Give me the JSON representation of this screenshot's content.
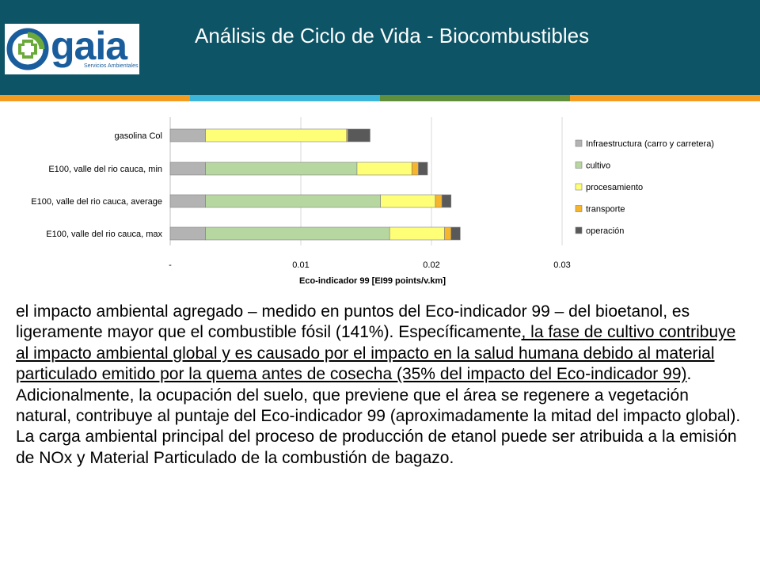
{
  "header": {
    "logo_name": "gaia",
    "logo_subtitle": "Servicios Ambientales",
    "title": "Análisis de Ciclo de Vida - Biocombustibles",
    "stripe_colors": [
      "#f39c1f",
      "#3bb5d8",
      "#5f8f3a",
      "#f39c1f"
    ]
  },
  "chart_data": {
    "type": "bar",
    "orientation": "horizontal",
    "stacked": true,
    "categories": [
      "gasolina Col",
      "E100, valle del rio cauca, min",
      "E100, valle del rio cauca, average",
      "E100, valle del rio cauca, max"
    ],
    "series": [
      {
        "name": "Infraestructura (carro y carretera)",
        "color": "#b3b3b3",
        "values": [
          0.0027,
          0.0027,
          0.0027,
          0.0027
        ]
      },
      {
        "name": "cultivo",
        "color": "#b7d7a0",
        "values": [
          0,
          0.0116,
          0.0134,
          0.0141
        ]
      },
      {
        "name": "procesamiento",
        "color": "#ffff77",
        "values": [
          0.0108,
          0.0042,
          0.0042,
          0.0042
        ]
      },
      {
        "name": "transporte",
        "color": "#f6b52b",
        "values": [
          0.0001,
          0.0005,
          0.0005,
          0.0005
        ]
      },
      {
        "name": "operación",
        "color": "#595959",
        "values": [
          0.0017,
          0.0007,
          0.0007,
          0.0007
        ]
      }
    ],
    "xlabel": "Eco-indicador 99 [EI99 points/v.km]",
    "ylabel": "",
    "xlim": [
      0,
      0.03
    ],
    "ticks": [
      0,
      0.01,
      0.02,
      0.03
    ],
    "tick_labels": [
      "-",
      "0.01",
      "0.02",
      "0.03"
    ],
    "grid": true,
    "legend_position": "right"
  },
  "body": {
    "p1": "el impacto ambiental agregado – medido en puntos del Eco-indicador 99 – del bioetanol, es ligeramente mayor que el combustible fósil (141%). Específicamente",
    "underlined": ", la fase de cultivo contribuye al impacto ambiental global y es causado por el impacto en la salud humana debido al material particulado emitido por la quema antes de cosecha (35% del impacto del Eco-indicador 99)",
    "p2": ". Adicionalmente, la ocupación del suelo, que previene que el área se regenere a vegetación natural, contribuye al puntaje del Eco-indicador 99 (aproximadamente la mitad del impacto global). La carga ambiental principal del proceso de producción de etanol puede ser atribuida a la emisión de NOx y Material Particulado de la combustión de bagazo."
  }
}
